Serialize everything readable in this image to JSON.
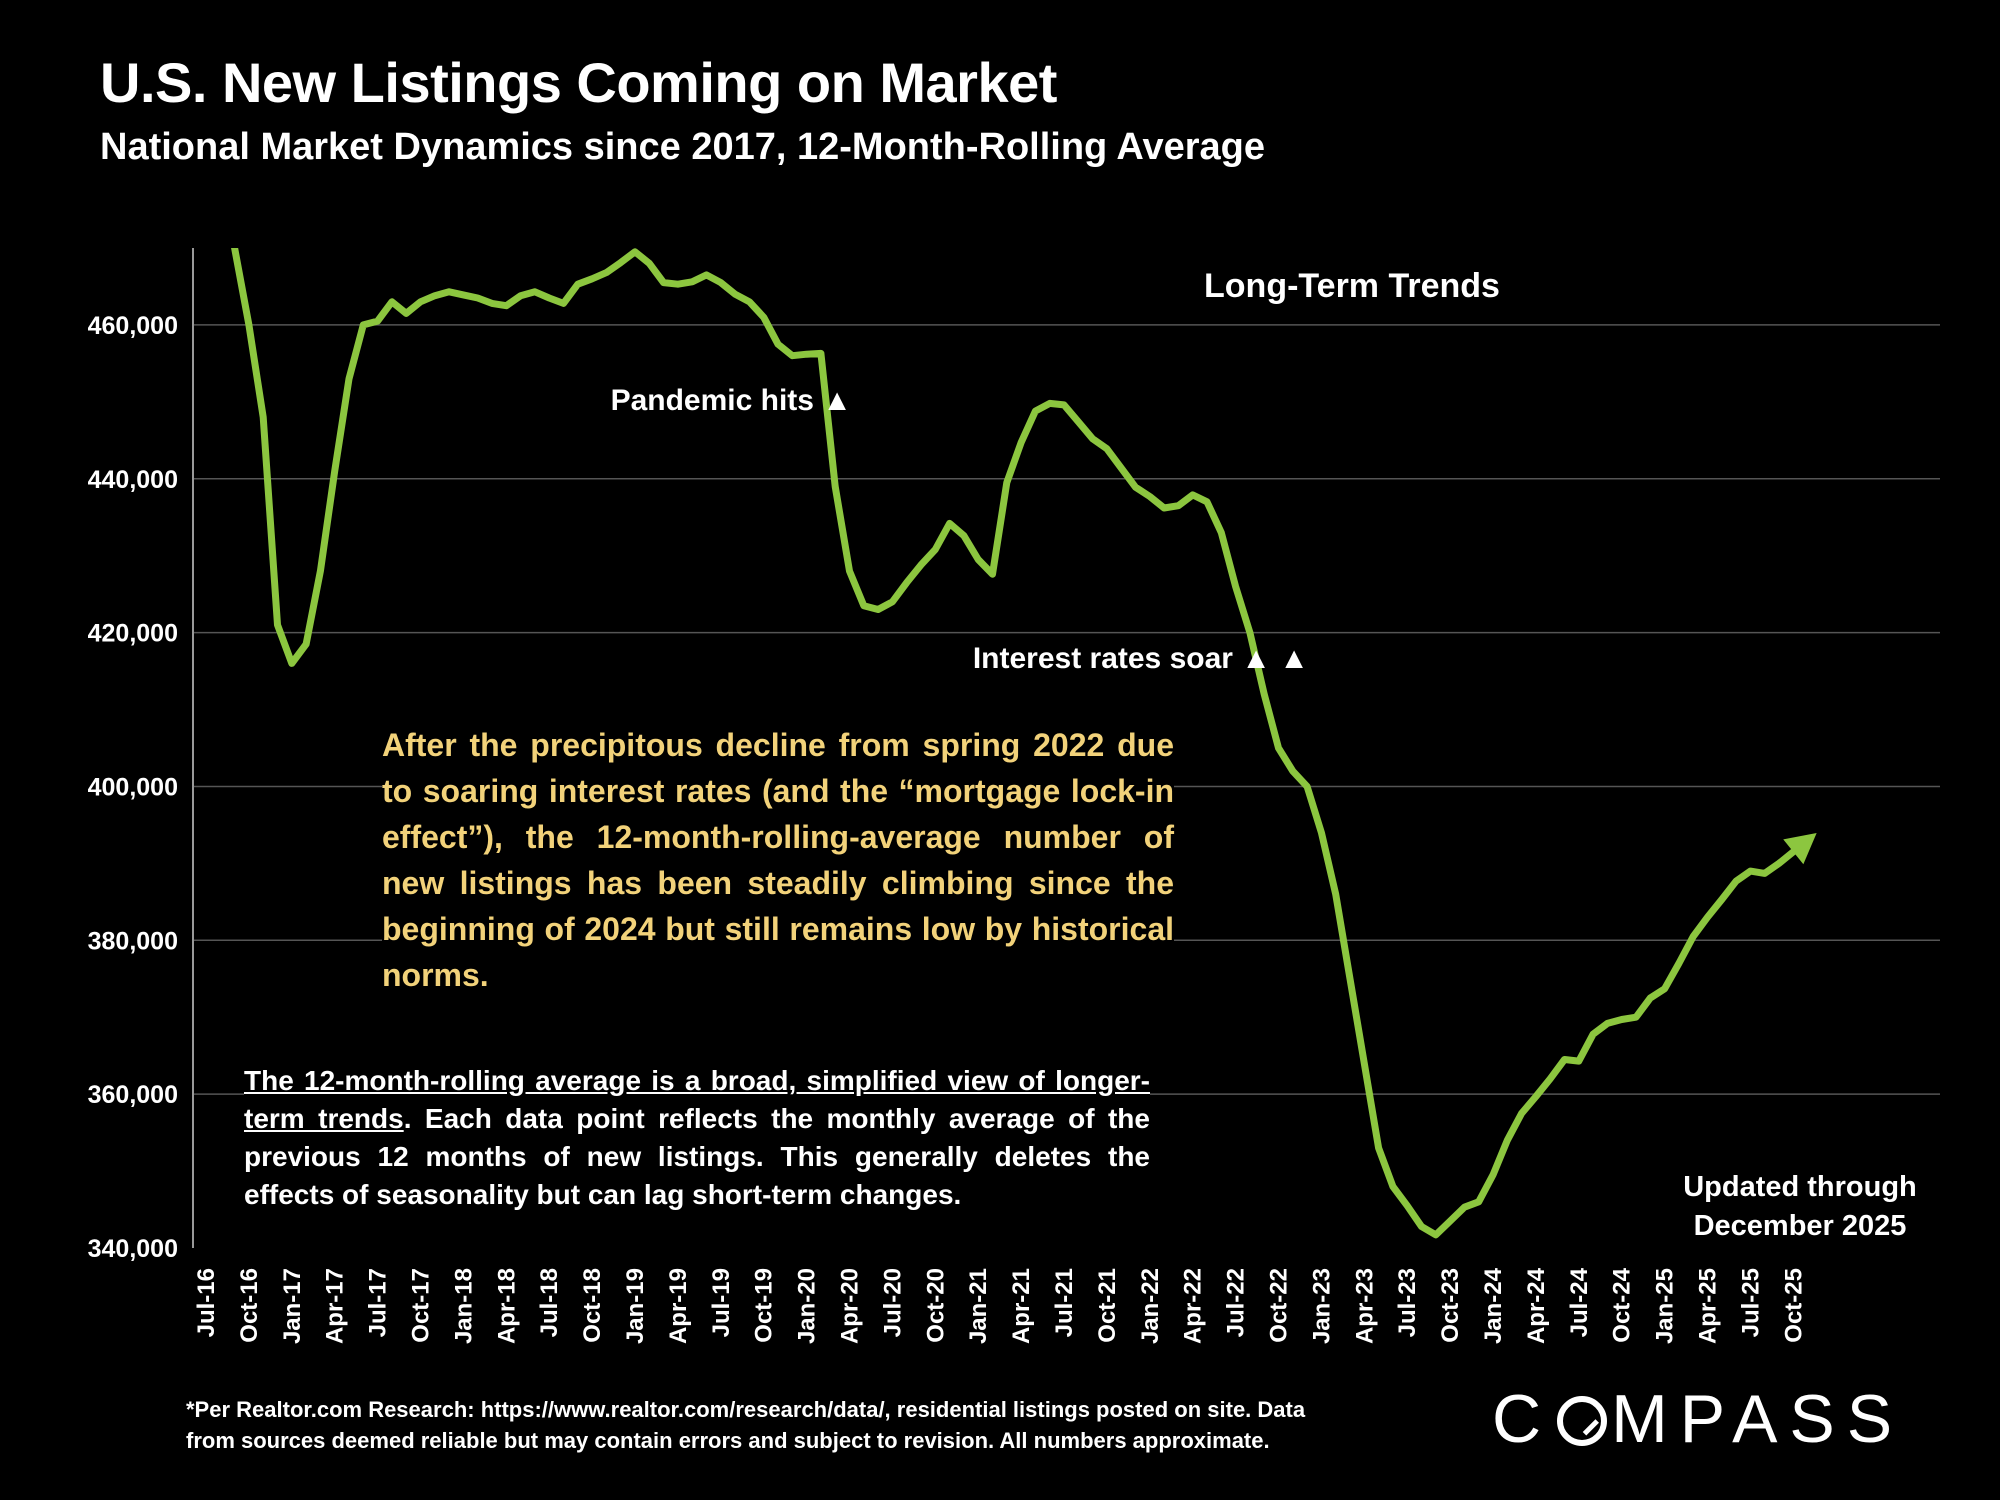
{
  "header": {
    "title": "U.S. New Listings Coming on Market",
    "subtitle": "National Market Dynamics since 2017, 12-Month-Rolling Average"
  },
  "annotations": {
    "long_term": "Long-Term Trends",
    "pandemic": "Pandemic hits ▲",
    "rates": "Interest rates soar ▲ ▲",
    "updated_line1": "Updated through",
    "updated_line2": "December 2025"
  },
  "notes": {
    "yellow": "After the precipitous decline from spring 2022 due to soaring interest rates (and the “mortgage lock-in effect”), the 12-month-rolling-average number of new listings has been steadily climbing since the beginning of 2024 but still remains low by historical norms.",
    "white_underlined": "The 12-month-rolling average is a broad, simplified view of longer-term trends",
    "white_rest": ". Each data point reflects the monthly average of the previous 12 months of new listings. This generally deletes the effects of seasonality but can lag short-term changes."
  },
  "footnote": {
    "line1": "*Per Realtor.com Research:  https://www.realtor.com/research/data/, residential listings posted on site. Data",
    "line2": "from sources deemed reliable but may contain errors and subject to revision. All numbers approximate."
  },
  "brand": {
    "logo_text": "COMPASS"
  },
  "colors": {
    "line": "#8cc63f",
    "note": "#f2d27a",
    "background": "#000000",
    "grid": "#555555"
  },
  "chart_data": {
    "type": "line",
    "title": "U.S. New Listings Coming on Market",
    "ylabel": "",
    "xlabel": "",
    "ylim": [
      340000,
      470000
    ],
    "yticks": [
      340000,
      360000,
      380000,
      400000,
      420000,
      440000,
      460000
    ],
    "ytick_labels": [
      "340,000",
      "360,000",
      "380,000",
      "400,000",
      "420,000",
      "440,000",
      "460,000"
    ],
    "x_tick_labels": [
      "Jul-16",
      "Oct-16",
      "Jan-17",
      "Apr-17",
      "Jul-17",
      "Oct-17",
      "Jan-18",
      "Apr-18",
      "Jul-18",
      "Oct-18",
      "Jan-19",
      "Apr-19",
      "Jul-19",
      "Oct-19",
      "Jan-20",
      "Apr-20",
      "Jul-20",
      "Oct-20",
      "Jan-21",
      "Apr-21",
      "Jul-21",
      "Oct-21",
      "Jan-22",
      "Apr-22",
      "Jul-22",
      "Oct-22",
      "Jan-23",
      "Apr-23",
      "Jul-23",
      "Oct-23",
      "Jan-24",
      "Apr-24",
      "Jul-24",
      "Oct-24",
      "Jan-25",
      "Apr-25",
      "Jul-25",
      "Oct-25"
    ],
    "grid": true,
    "series": [
      {
        "name": "New listings (12-month rolling average)",
        "start": "Sep-16",
        "values": [
          470000,
          460000,
          448000,
          421000,
          416000,
          418500,
          428000,
          441000,
          453000,
          460000,
          460500,
          463000,
          461500,
          463000,
          463800,
          464300,
          463900,
          463500,
          462800,
          462500,
          463800,
          464300,
          463500,
          462800,
          465300,
          466000,
          466800,
          468100,
          469500,
          468000,
          465500,
          465300,
          465600,
          466500,
          465500,
          464000,
          463000,
          461000,
          457500,
          456000,
          456200,
          456300,
          439000,
          428000,
          423500,
          423000,
          424000,
          426500,
          428800,
          430800,
          434200,
          432600,
          429500,
          427600,
          439500,
          444700,
          448800,
          449800,
          449600,
          447400,
          445200,
          443900,
          441400,
          438900,
          437700,
          436200,
          436500,
          437900,
          437000,
          433000,
          426000,
          420000,
          412000,
          405000,
          402000,
          400000,
          394000,
          386000,
          375000,
          364000,
          353000,
          348000,
          345500,
          342800,
          341700,
          343500,
          345300,
          346000,
          349500,
          354000,
          357500,
          359700,
          362000,
          364500,
          364300,
          367800,
          369200,
          369700,
          370000,
          372500,
          373700,
          377000,
          380500,
          383000,
          385300,
          387700,
          389000,
          388700,
          390000,
          391500
        ]
      }
    ]
  }
}
